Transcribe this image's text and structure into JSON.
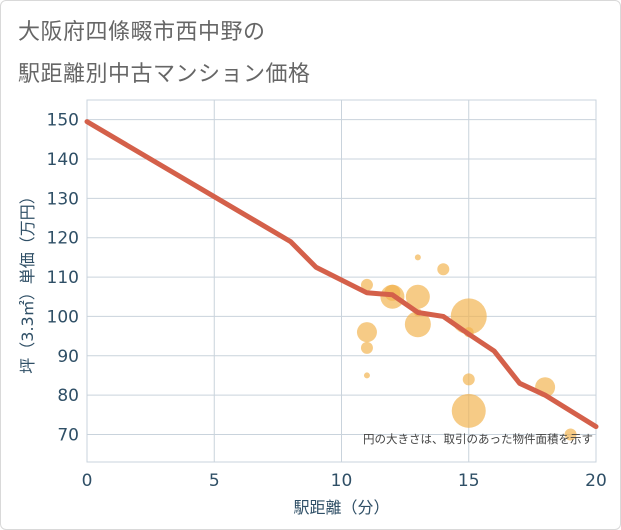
{
  "title_line1": "大阪府四條畷市西中野の",
  "title_line2": "駅距離別中古マンション価格",
  "chart_data": {
    "type": "scatter",
    "title": "大阪府四條畷市西中野の駅距離別中古マンション価格",
    "xlabel": "駅距離（分）",
    "ylabel": "坪（3.3㎡）単価（万円）",
    "xlim": [
      0,
      20
    ],
    "ylim": [
      63,
      155
    ],
    "xticks": [
      0,
      5,
      10,
      15,
      20
    ],
    "yticks": [
      70,
      80,
      90,
      100,
      110,
      120,
      130,
      140,
      150
    ],
    "grid": true,
    "note": "円の大きさは、取引のあった物件面積を示す",
    "colors": {
      "bubble": "#f2b24d",
      "trend": "#d4604a",
      "grid": "#c9d3dc",
      "plot_bg": "#ffffff"
    },
    "scatter": [
      {
        "x": 11,
        "y": 108,
        "size": 6
      },
      {
        "x": 11,
        "y": 96,
        "size": 10
      },
      {
        "x": 11,
        "y": 92,
        "size": 6
      },
      {
        "x": 11,
        "y": 85,
        "size": 3
      },
      {
        "x": 12,
        "y": 106,
        "size": 8
      },
      {
        "x": 12,
        "y": 105,
        "size": 12
      },
      {
        "x": 13,
        "y": 115,
        "size": 3
      },
      {
        "x": 13,
        "y": 105,
        "size": 12
      },
      {
        "x": 13,
        "y": 101,
        "size": 4
      },
      {
        "x": 13,
        "y": 98,
        "size": 13
      },
      {
        "x": 14,
        "y": 112,
        "size": 6
      },
      {
        "x": 15,
        "y": 100,
        "size": 18
      },
      {
        "x": 15,
        "y": 96,
        "size": 5
      },
      {
        "x": 15,
        "y": 84,
        "size": 6
      },
      {
        "x": 15,
        "y": 76,
        "size": 17
      },
      {
        "x": 18,
        "y": 82,
        "size": 10
      },
      {
        "x": 19,
        "y": 70,
        "size": 6
      }
    ],
    "trend": {
      "x": [
        0,
        8,
        9,
        11,
        12,
        13,
        14,
        15,
        16,
        17,
        18,
        20
      ],
      "y": [
        149.5,
        119,
        112.5,
        106,
        105.5,
        101,
        100,
        95.5,
        91.2,
        83,
        80,
        72
      ]
    }
  }
}
